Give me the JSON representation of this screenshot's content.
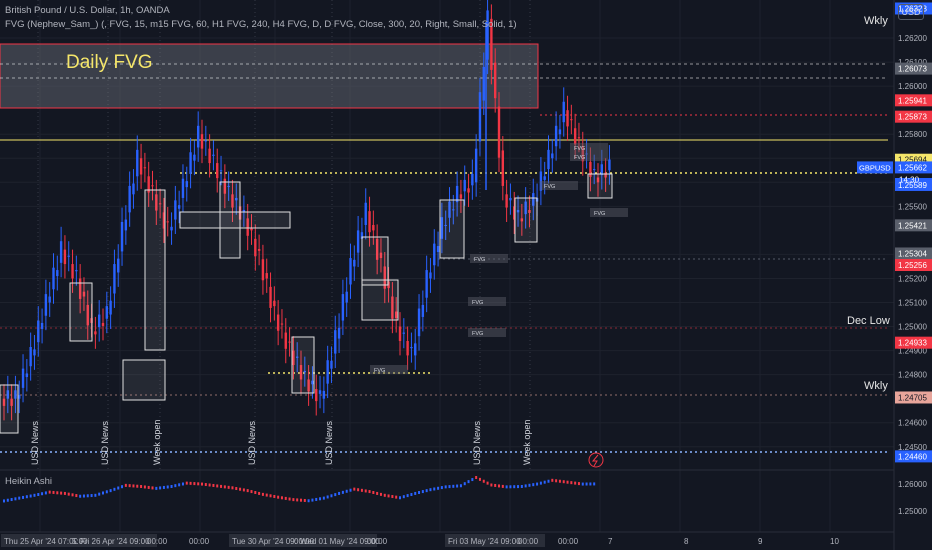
{
  "legend": {
    "line1": "British Pound / U.S. Dollar, 1h, OANDA",
    "line2": "FVG (Nephew_Sam_) (, FVG, 15, m15 FVG, 60, H1 FVG, 240, H4 FVG, D, D FVG, Close, 300, 20, Right, Small, Solid, 1)",
    "indicator": "Heikin Ashi"
  },
  "currency": "USD",
  "annotations": {
    "daily_fvg": "Daily FVG",
    "wkly_top": "Wkly",
    "dec_low": "Dec Low",
    "wkly_bottom": "Wkly",
    "fvg": "FVG",
    "symbol": "GBPUSD",
    "countdown": "14:30"
  },
  "colors": {
    "background": "#131722",
    "bull": "#2962ff",
    "bear": "#f23645",
    "yellow": "#f5e66a",
    "grid": "#2a2e39"
  },
  "chart_data": {
    "type": "candlestick",
    "symbol": "British Pound / U.S. Dollar",
    "interval": "1h",
    "price_ticks": [
      "1.26200",
      "1.26100",
      "1.26000",
      "1.25800",
      "1.25700",
      "1.25600",
      "1.25500",
      "1.25300",
      "1.25200",
      "1.25100",
      "1.25000",
      "1.24900",
      "1.24800",
      "1.24600",
      "1.24500",
      "1.26000",
      "1.25000"
    ],
    "price_labels": [
      {
        "price": 1.26323,
        "text": "1.26323",
        "color": "#2962ff"
      },
      {
        "price": 1.26073,
        "text": "1.26073",
        "color": "#5a5f6b"
      },
      {
        "price": 1.25941,
        "text": "1.25941",
        "color": "#f23645"
      },
      {
        "price": 1.25873,
        "text": "1.25873",
        "color": "#f23645"
      },
      {
        "price": 1.25694,
        "text": "1.25694",
        "color": "#f5e66a"
      },
      {
        "price": 1.25662,
        "text": "1.25662",
        "color": "#2962ff"
      },
      {
        "price": 1.25593,
        "text": "1.25593",
        "color": "#2962ff"
      },
      {
        "price": 1.25589,
        "text": "1.25589",
        "color": "#2962ff"
      },
      {
        "price": 1.25421,
        "text": "1.25421",
        "color": "#5a5f6b"
      },
      {
        "price": 1.25304,
        "text": "1.25304",
        "color": "#5a5f6b"
      },
      {
        "price": 1.25256,
        "text": "1.25256",
        "color": "#f23645"
      },
      {
        "price": 1.24933,
        "text": "1.24933",
        "color": "#f23645"
      },
      {
        "price": 1.24705,
        "text": "1.24705",
        "color": "#e8a59b"
      },
      {
        "price": 1.2446,
        "text": "1.24460",
        "color": "#2962ff"
      }
    ],
    "x_labels": [
      "Thu 25 Apr '24  07:00",
      "Fri 26 Apr '24  09:00",
      "Tue 30 Apr '24  09:00",
      "Wed 01 May '24  09:00",
      "Fri 03 May '24  09:00",
      "7",
      "8",
      "9",
      "10"
    ],
    "time_ticks": [
      "5:00",
      "00:00",
      "00:00",
      "00:00",
      "00:00",
      "00:00",
      "00:00"
    ],
    "events": [
      "USD News",
      "USD News",
      "Week open",
      "USD News",
      "USD News",
      "USD News",
      "Week open"
    ],
    "series": [
      {
        "name": "GBPUSD",
        "values": [
          1.247,
          1.2488,
          1.251,
          1.2532,
          1.252,
          1.2498,
          1.2505,
          1.254,
          1.257,
          1.2555,
          1.254,
          1.2558,
          1.258,
          1.2568,
          1.2555,
          1.2545,
          1.2528,
          1.2505,
          1.249,
          1.2478,
          1.247,
          1.2495,
          1.2525,
          1.2548,
          1.2525,
          1.25,
          1.2488,
          1.252,
          1.2542,
          1.2555,
          1.256,
          1.2628,
          1.2555,
          1.2545,
          1.2552,
          1.257,
          1.259,
          1.2575,
          1.2562,
          1.2566
        ]
      },
      {
        "name": "Heikin Ashi",
        "values": [
          1.2475,
          1.249,
          1.2505,
          1.2522,
          1.2515,
          1.25,
          1.2505,
          1.253,
          1.2558,
          1.2552,
          1.2542,
          1.2552,
          1.257,
          1.2565,
          1.2555,
          1.2545,
          1.253,
          1.251,
          1.2495,
          1.2482,
          1.2476,
          1.249,
          1.2515,
          1.2538,
          1.2525,
          1.2505,
          1.2492,
          1.2515,
          1.2535,
          1.255,
          1.2556,
          1.26,
          1.256,
          1.255,
          1.2552,
          1.2565,
          1.2585,
          1.2575,
          1.2565,
          1.2566
        ]
      }
    ],
    "ylim": [
      1.2442,
      1.2635
    ]
  }
}
